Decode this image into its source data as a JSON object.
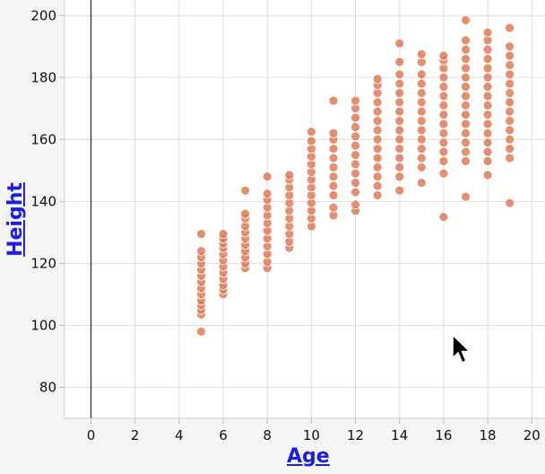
{
  "chart_data": {
    "type": "scatter",
    "xlabel": "Age",
    "ylabel": "Height",
    "xlim": [
      -1.2,
      20.6
    ],
    "ylim": [
      70,
      205
    ],
    "x_ticks": [
      0,
      2,
      4,
      6,
      8,
      10,
      12,
      14,
      16,
      18,
      20
    ],
    "y_ticks": [
      80,
      100,
      120,
      140,
      160,
      180,
      200
    ],
    "grid": true,
    "point_color": "#e07a57",
    "series": [
      {
        "points": [
          [
            5,
            98
          ],
          [
            5,
            103.5
          ],
          [
            5,
            105
          ],
          [
            5,
            106.5
          ],
          [
            5,
            108
          ],
          [
            5,
            110
          ],
          [
            5,
            112
          ],
          [
            5,
            114
          ],
          [
            5,
            116
          ],
          [
            5,
            118
          ],
          [
            5,
            120
          ],
          [
            5,
            122
          ],
          [
            5,
            124
          ],
          [
            5,
            129.5
          ],
          [
            6,
            110
          ],
          [
            6,
            111.5
          ],
          [
            6,
            113
          ],
          [
            6,
            115
          ],
          [
            6,
            117
          ],
          [
            6,
            119
          ],
          [
            6,
            121
          ],
          [
            6,
            123
          ],
          [
            6,
            125
          ],
          [
            6,
            126.5
          ],
          [
            6,
            128
          ],
          [
            6,
            129.5
          ],
          [
            7,
            118.5
          ],
          [
            7,
            120
          ],
          [
            7,
            122
          ],
          [
            7,
            124
          ],
          [
            7,
            126
          ],
          [
            7,
            128
          ],
          [
            7,
            130
          ],
          [
            7,
            132
          ],
          [
            7,
            134.5
          ],
          [
            7,
            136
          ],
          [
            7,
            143.5
          ],
          [
            8,
            118.5
          ],
          [
            8,
            120.5
          ],
          [
            8,
            123
          ],
          [
            8,
            125.5
          ],
          [
            8,
            128
          ],
          [
            8,
            130.5
          ],
          [
            8,
            133
          ],
          [
            8,
            135.5
          ],
          [
            8,
            138
          ],
          [
            8,
            140.5
          ],
          [
            8,
            142.5
          ],
          [
            8,
            148
          ],
          [
            9,
            125
          ],
          [
            9,
            127
          ],
          [
            9,
            129.5
          ],
          [
            9,
            132
          ],
          [
            9,
            134.5
          ],
          [
            9,
            137
          ],
          [
            9,
            139.5
          ],
          [
            9,
            142
          ],
          [
            9,
            144.5
          ],
          [
            9,
            147
          ],
          [
            9,
            148.5
          ],
          [
            10,
            132
          ],
          [
            10,
            134.5
          ],
          [
            10,
            137
          ],
          [
            10,
            139.5
          ],
          [
            10,
            142
          ],
          [
            10,
            144.5
          ],
          [
            10,
            147
          ],
          [
            10,
            149.5
          ],
          [
            10,
            152
          ],
          [
            10,
            154.5
          ],
          [
            10,
            157
          ],
          [
            10,
            159.5
          ],
          [
            10,
            162.5
          ],
          [
            11,
            135.5
          ],
          [
            11,
            138
          ],
          [
            11,
            142
          ],
          [
            11,
            145
          ],
          [
            11,
            148
          ],
          [
            11,
            151
          ],
          [
            11,
            154
          ],
          [
            11,
            157
          ],
          [
            11,
            160
          ],
          [
            11,
            162
          ],
          [
            11,
            172.5
          ],
          [
            12,
            137
          ],
          [
            12,
            139
          ],
          [
            12,
            143
          ],
          [
            12,
            146
          ],
          [
            12,
            149
          ],
          [
            12,
            152
          ],
          [
            12,
            155
          ],
          [
            12,
            158
          ],
          [
            12,
            161
          ],
          [
            12,
            164
          ],
          [
            12,
            167
          ],
          [
            12,
            170
          ],
          [
            12,
            172.5
          ],
          [
            13,
            142
          ],
          [
            13,
            145
          ],
          [
            13,
            148
          ],
          [
            13,
            151
          ],
          [
            13,
            154
          ],
          [
            13,
            157
          ],
          [
            13,
            160
          ],
          [
            13,
            163
          ],
          [
            13,
            166
          ],
          [
            13,
            169
          ],
          [
            13,
            172
          ],
          [
            13,
            175
          ],
          [
            13,
            177.5
          ],
          [
            13,
            179.5
          ],
          [
            14,
            143.5
          ],
          [
            14,
            148
          ],
          [
            14,
            151
          ],
          [
            14,
            154
          ],
          [
            14,
            157
          ],
          [
            14,
            160
          ],
          [
            14,
            163
          ],
          [
            14,
            166
          ],
          [
            14,
            169
          ],
          [
            14,
            172
          ],
          [
            14,
            175
          ],
          [
            14,
            178
          ],
          [
            14,
            181
          ],
          [
            14,
            185
          ],
          [
            14,
            191
          ],
          [
            15,
            146
          ],
          [
            15,
            151
          ],
          [
            15,
            154
          ],
          [
            15,
            157
          ],
          [
            15,
            160
          ],
          [
            15,
            163
          ],
          [
            15,
            166
          ],
          [
            15,
            169
          ],
          [
            15,
            172
          ],
          [
            15,
            175
          ],
          [
            15,
            178
          ],
          [
            15,
            181
          ],
          [
            15,
            185
          ],
          [
            15,
            187.5
          ],
          [
            16,
            135
          ],
          [
            16,
            149
          ],
          [
            16,
            153
          ],
          [
            16,
            156
          ],
          [
            16,
            159
          ],
          [
            16,
            162
          ],
          [
            16,
            165
          ],
          [
            16,
            168
          ],
          [
            16,
            171
          ],
          [
            16,
            174
          ],
          [
            16,
            177
          ],
          [
            16,
            180
          ],
          [
            16,
            183
          ],
          [
            16,
            185.5
          ],
          [
            16,
            187
          ],
          [
            17,
            141.5
          ],
          [
            17,
            153
          ],
          [
            17,
            156
          ],
          [
            17,
            159
          ],
          [
            17,
            162
          ],
          [
            17,
            165
          ],
          [
            17,
            168
          ],
          [
            17,
            171
          ],
          [
            17,
            174
          ],
          [
            17,
            177
          ],
          [
            17,
            180
          ],
          [
            17,
            183
          ],
          [
            17,
            186
          ],
          [
            17,
            189
          ],
          [
            17,
            192
          ],
          [
            17,
            198.5
          ],
          [
            18,
            148.5
          ],
          [
            18,
            153
          ],
          [
            18,
            156
          ],
          [
            18,
            159
          ],
          [
            18,
            162
          ],
          [
            18,
            165
          ],
          [
            18,
            168
          ],
          [
            18,
            171
          ],
          [
            18,
            174
          ],
          [
            18,
            177
          ],
          [
            18,
            180
          ],
          [
            18,
            183
          ],
          [
            18,
            186
          ],
          [
            18,
            189
          ],
          [
            18,
            192
          ],
          [
            18,
            194.5
          ],
          [
            19,
            139.5
          ],
          [
            19,
            154
          ],
          [
            19,
            157
          ],
          [
            19,
            160
          ],
          [
            19,
            163
          ],
          [
            19,
            166
          ],
          [
            19,
            169
          ],
          [
            19,
            172
          ],
          [
            19,
            175
          ],
          [
            19,
            178
          ],
          [
            19,
            181
          ],
          [
            19,
            184
          ],
          [
            19,
            187
          ],
          [
            19,
            190
          ],
          [
            19,
            196
          ]
        ]
      }
    ]
  },
  "icons": {
    "cursor": "mouse-pointer-icon"
  }
}
